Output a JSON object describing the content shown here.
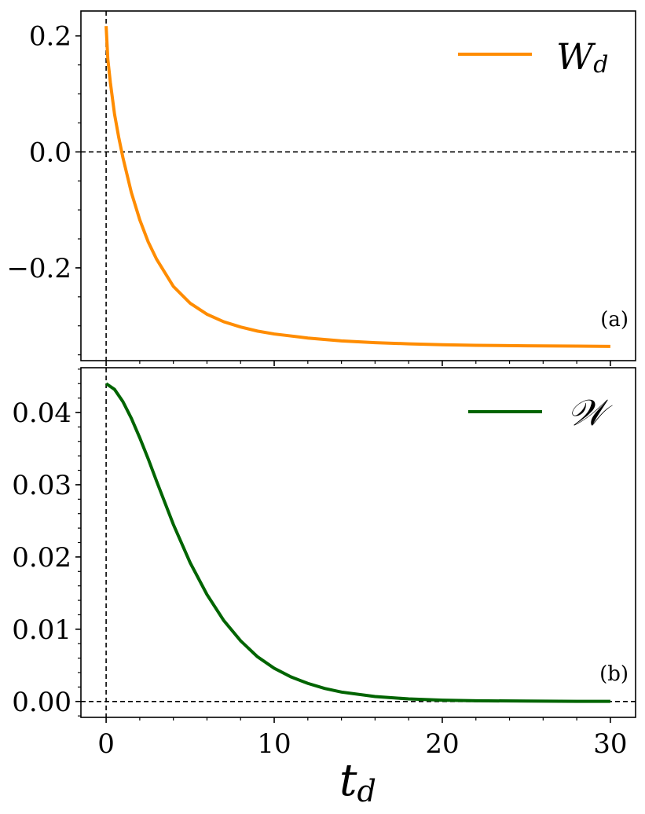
{
  "chart_data": [
    {
      "type": "line",
      "panel_label": "(a)",
      "xlim": [
        -1.5,
        31.5
      ],
      "ylim": [
        -0.36,
        0.243
      ],
      "yticks": [
        0.2,
        0.0,
        -0.2
      ],
      "ytick_labels": [
        "0.2",
        "0.0",
        "−0.2"
      ],
      "reference_lines": {
        "x": 0,
        "y": 0
      },
      "legend_position": "top-right",
      "series": [
        {
          "name": "W",
          "name_subscript": "d",
          "color": "#ff8c00",
          "x": [
            0,
            0.1,
            0.25,
            0.5,
            0.75,
            1,
            1.5,
            2,
            2.5,
            3,
            4,
            5,
            6,
            7,
            8,
            9,
            10,
            12,
            14,
            16,
            18,
            20,
            22,
            25,
            28,
            30
          ],
          "y": [
            0.217,
            0.16,
            0.12,
            0.065,
            0.025,
            -0.01,
            -0.07,
            -0.117,
            -0.155,
            -0.185,
            -0.232,
            -0.261,
            -0.28,
            -0.293,
            -0.302,
            -0.309,
            -0.314,
            -0.321,
            -0.326,
            -0.329,
            -0.331,
            -0.3325,
            -0.3335,
            -0.3345,
            -0.335,
            -0.3355
          ]
        }
      ]
    },
    {
      "type": "line",
      "panel_label": "(b)",
      "xlim": [
        -1.5,
        31.5
      ],
      "ylim": [
        -0.0022,
        0.0462
      ],
      "yticks": [
        0.04,
        0.03,
        0.02,
        0.01,
        0.0
      ],
      "ytick_labels": [
        "0.04",
        "0.03",
        "0.02",
        "0.01",
        "0.00"
      ],
      "xticks": [
        0,
        10,
        20,
        30
      ],
      "xtick_labels": [
        "0",
        "10",
        "20",
        "30"
      ],
      "xlabel": "t",
      "xlabel_subscript": "d",
      "reference_lines": {
        "x": 0,
        "y": 0
      },
      "legend_position": "top-right",
      "series": [
        {
          "name": "𝒲",
          "color": "#006400",
          "x": [
            0,
            0.5,
            1,
            1.5,
            2,
            2.5,
            3,
            4,
            5,
            6,
            7,
            8,
            9,
            10,
            11,
            12,
            13,
            14,
            16,
            18,
            20,
            22,
            25,
            28,
            30
          ],
          "y": [
            0.044,
            0.0432,
            0.0415,
            0.0392,
            0.0365,
            0.0336,
            0.0305,
            0.0245,
            0.0192,
            0.0148,
            0.0112,
            0.0084,
            0.0062,
            0.0046,
            0.0034,
            0.0025,
            0.0018,
            0.0013,
            0.00068,
            0.00035,
            0.00018,
            0.0001,
            5e-05,
            2e-05,
            1e-05
          ]
        }
      ]
    }
  ]
}
